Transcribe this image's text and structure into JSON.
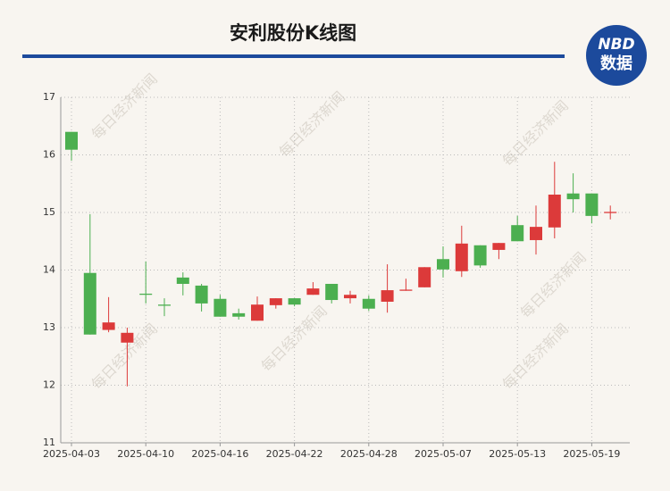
{
  "chart_data": {
    "type": "candlestick",
    "title": "安利股份K线图",
    "logo": {
      "top": "NBD",
      "bottom": "数据"
    },
    "watermark": "每日经济新闻",
    "categories": [
      "2025-04-03",
      null,
      null,
      null,
      "2025-04-10",
      null,
      null,
      null,
      "2025-04-16",
      null,
      null,
      null,
      "2025-04-22",
      null,
      null,
      null,
      "2025-04-28",
      null,
      null,
      null,
      "2025-05-07",
      null,
      null,
      null,
      "2025-05-13",
      null,
      null,
      null,
      "2025-05-19",
      null
    ],
    "open": [
      16.4,
      13.95,
      12.96,
      12.74,
      13.59,
      13.4,
      13.87,
      13.73,
      13.5,
      13.25,
      13.12,
      13.39,
      13.51,
      13.57,
      13.76,
      13.51,
      13.5,
      13.45,
      13.64,
      13.7,
      14.19,
      13.98,
      14.43,
      14.35,
      14.78,
      14.52,
      14.74,
      15.33,
      15.33,
      14.99
    ],
    "high": [
      16.4,
      14.97,
      13.53,
      13.0,
      14.15,
      13.51,
      13.96,
      13.76,
      13.57,
      13.33,
      13.54,
      13.51,
      13.51,
      13.79,
      13.76,
      13.64,
      13.56,
      14.1,
      13.85,
      14.05,
      14.41,
      14.77,
      14.43,
      14.47,
      14.94,
      15.12,
      15.88,
      15.68,
      15.33,
      15.12
    ],
    "low": [
      15.9,
      12.88,
      12.92,
      11.98,
      13.42,
      13.2,
      13.56,
      13.28,
      13.19,
      13.14,
      13.12,
      13.33,
      13.37,
      13.57,
      13.42,
      13.42,
      13.29,
      13.26,
      13.64,
      13.7,
      13.87,
      13.88,
      14.04,
      14.19,
      14.5,
      14.27,
      14.55,
      15.0,
      14.81,
      14.88
    ],
    "close": [
      16.09,
      12.88,
      13.09,
      12.91,
      13.57,
      13.38,
      13.76,
      13.42,
      13.19,
      13.19,
      13.4,
      13.51,
      13.4,
      13.68,
      13.48,
      13.57,
      13.33,
      13.65,
      13.66,
      14.05,
      14.01,
      14.46,
      14.08,
      14.47,
      14.5,
      14.75,
      15.31,
      15.23,
      14.94,
      15.01
    ],
    "up_color": "#dc3a3a",
    "down_color": "#4caf50",
    "ylim": [
      11,
      17
    ],
    "yticks": [
      11,
      12,
      13,
      14,
      15,
      16,
      17
    ],
    "grid": true
  }
}
